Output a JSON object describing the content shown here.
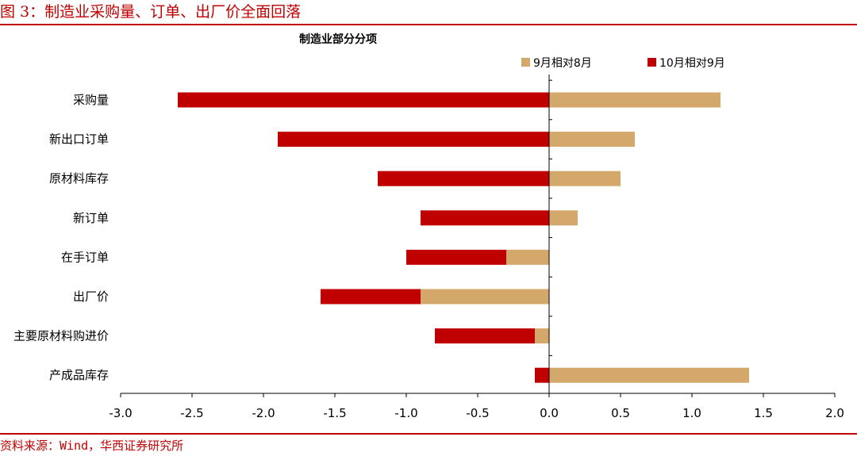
{
  "figure": {
    "title": "图 3：制造业采购量、订单、出厂价全面回落",
    "source": "资料来源：Wind，华西证券研究所",
    "accent_color": "#c00000"
  },
  "chart_data": {
    "type": "bar",
    "orientation": "horizontal",
    "stacked": true,
    "title": "制造业部分分项",
    "categories": [
      "采购量",
      "新出口订单",
      "原材料库存",
      "新订单",
      "在手订单",
      "出厂价",
      "主要原材料购进价",
      "产成品库存"
    ],
    "series": [
      {
        "name": "9月相对8月",
        "color": "#d4a76a",
        "values": [
          1.2,
          0.6,
          0.5,
          0.2,
          -0.3,
          -0.9,
          -0.1,
          1.4
        ]
      },
      {
        "name": "10月相对9月",
        "color": "#c00000",
        "values": [
          -2.6,
          -1.9,
          -1.2,
          -0.9,
          -0.7,
          -0.7,
          -0.7,
          -0.1
        ]
      }
    ],
    "xlim": [
      -3.0,
      2.0
    ],
    "xticks": [
      "-3.0",
      "-2.5",
      "-2.0",
      "-1.5",
      "-1.0",
      "-0.5",
      "0.0",
      "0.5",
      "1.0",
      "1.5",
      "2.0"
    ],
    "legend_position": "top-right",
    "grid": false
  }
}
